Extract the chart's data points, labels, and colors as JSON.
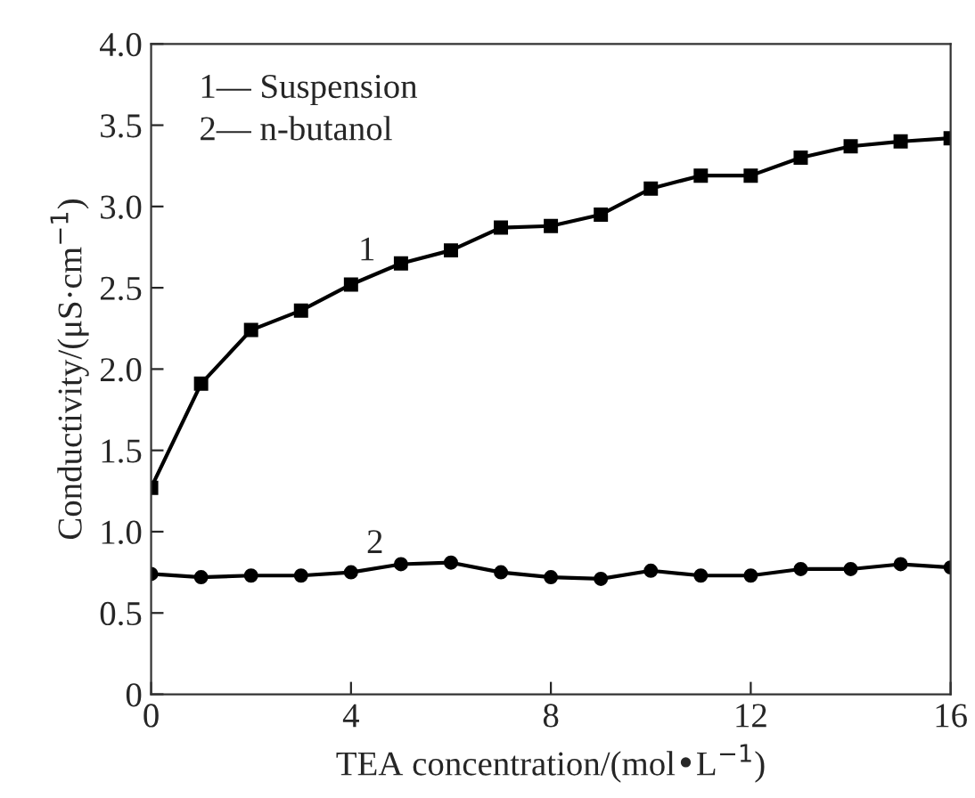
{
  "chart_data": {
    "type": "line",
    "xlabel": "TEA concentration/(mol•L$^{−1}$)",
    "ylabel": "Conductivity/(μS·cm$^{−1}$)",
    "x": [
      0,
      1,
      2,
      3,
      4,
      5,
      6,
      7,
      8,
      9,
      10,
      11,
      12,
      13,
      14,
      15,
      16
    ],
    "series": [
      {
        "color": "#000000",
        "marker": "square",
        "values": [
          1.27,
          1.91,
          2.24,
          2.36,
          2.52,
          2.65,
          2.73,
          2.87,
          2.88,
          2.95,
          3.11,
          3.19,
          3.19,
          3.3,
          3.37,
          3.4,
          3.42
        ]
      },
      {
        "color": "#000000",
        "marker": "circle",
        "values": [
          0.74,
          0.72,
          0.73,
          0.73,
          0.75,
          0.8,
          0.81,
          0.75,
          0.72,
          0.71,
          0.76,
          0.73,
          0.73,
          0.77,
          0.77,
          0.8,
          0.78
        ]
      }
    ],
    "xlim": [
      0,
      16
    ],
    "xticks": [
      0,
      4,
      8,
      12,
      16
    ],
    "ylim": [
      0,
      4.0
    ],
    "yticks": [
      {
        "value": 0,
        "label": "0"
      },
      {
        "value": 0.5,
        "label": "0.5"
      },
      {
        "value": 1.0,
        "label": "1.0"
      },
      {
        "value": 1.5,
        "label": "1.5"
      },
      {
        "value": 2.0,
        "label": "2.0"
      },
      {
        "value": 2.5,
        "label": "2.5"
      },
      {
        "value": 3.0,
        "label": "3.0"
      },
      {
        "value": 3.5,
        "label": "3.5"
      },
      {
        "value": 4.0,
        "label": "4.0"
      }
    ],
    "grid": false,
    "line_style": "solid",
    "annotations": [
      "1— Suspension",
      "2— n-butanol",
      "1",
      "2"
    ]
  }
}
